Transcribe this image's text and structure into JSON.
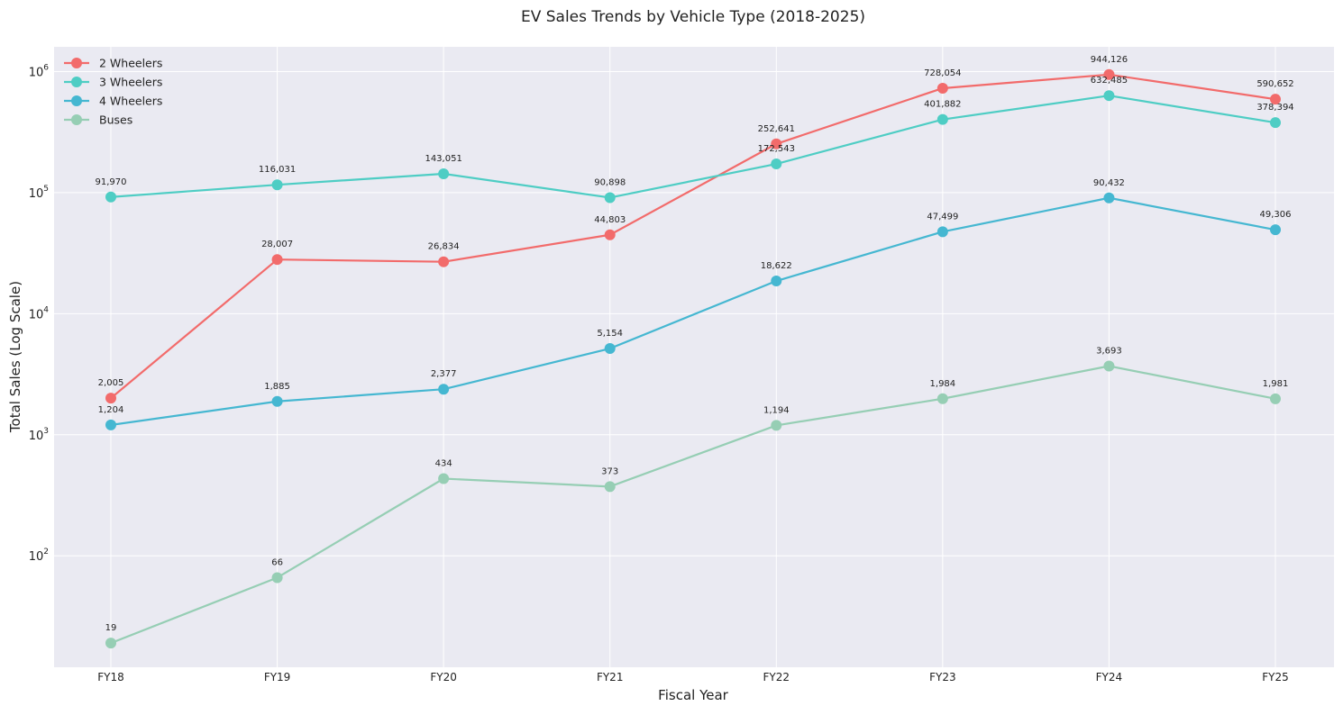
{
  "chart_data": {
    "type": "line",
    "title": "EV Sales Trends by Vehicle Type (2018-2025)",
    "xlabel": "Fiscal Year",
    "ylabel": "Total Sales (Log Scale)",
    "yscale": "log",
    "ylim": [
      12,
      1600000
    ],
    "grid": true,
    "legend_position": "top-left",
    "categories": [
      "FY18",
      "FY19",
      "FY20",
      "FY21",
      "FY22",
      "FY23",
      "FY24",
      "FY25"
    ],
    "y_ticks": [
      {
        "value": 100,
        "base": "10",
        "exp": "2"
      },
      {
        "value": 1000,
        "base": "10",
        "exp": "3"
      },
      {
        "value": 10000,
        "base": "10",
        "exp": "4"
      },
      {
        "value": 100000,
        "base": "10",
        "exp": "5"
      },
      {
        "value": 1000000,
        "base": "10",
        "exp": "6"
      }
    ],
    "series": [
      {
        "name": "2 Wheelers",
        "color": "#f26b6b",
        "values": [
          2005,
          28007,
          26834,
          44803,
          252641,
          728054,
          944126,
          590652
        ]
      },
      {
        "name": "3 Wheelers",
        "color": "#4ecdc4",
        "values": [
          91970,
          116031,
          143051,
          90898,
          172543,
          401882,
          632485,
          378394
        ]
      },
      {
        "name": "4 Wheelers",
        "color": "#45b7d1",
        "values": [
          1204,
          1885,
          2377,
          5154,
          18622,
          47499,
          90432,
          49306
        ]
      },
      {
        "name": "Buses",
        "color": "#96ceb4",
        "values": [
          19,
          66,
          434,
          373,
          1194,
          1984,
          3693,
          1981
        ]
      }
    ]
  }
}
